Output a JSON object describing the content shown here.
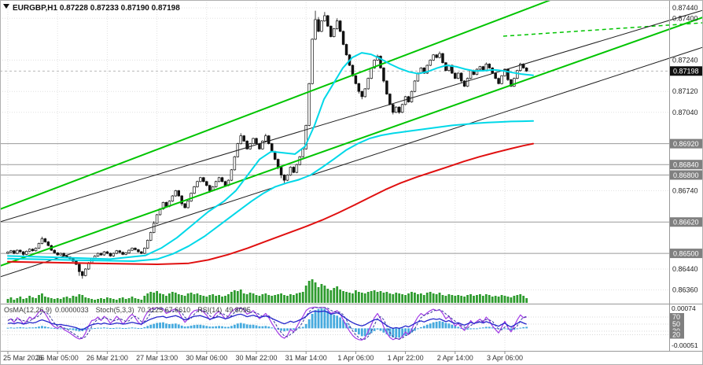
{
  "header": {
    "display": "EURGBP,H1  0.87228 0.87233 0.87190 0.87198"
  },
  "colors": {
    "green_line": "#00c400",
    "dark_line": "#1f1f1f",
    "ma_fast": "#00d8e8",
    "ma_slow": "#00d8e8",
    "ma_red": "#e01010",
    "volume": "#2e9b2e",
    "osma": "#46aade",
    "stoch": "#a23ae6",
    "stoch_signal": "#34349c",
    "rsi": "#2626cc",
    "badge": "#808080",
    "current_badge": "#111111"
  },
  "y_axis": {
    "labels": [
      {
        "text": "0.87440",
        "price": 87440
      },
      {
        "text": "0.87400",
        "price": 87400
      },
      {
        "text": "0.87240",
        "price": 87240
      },
      {
        "text": "0.87120",
        "price": 87120
      },
      {
        "text": "0.87040",
        "price": 87040
      },
      {
        "text": "0.86740",
        "price": 86740
      },
      {
        "text": "0.86440",
        "price": 86440
      },
      {
        "text": "0.86360",
        "price": 86360
      }
    ],
    "current": {
      "text": "0.87198",
      "price": 87198
    }
  },
  "x_axis": {
    "labels": [
      "25 Mar 2026",
      "26 Mar 05:00",
      "26 Mar 21:00",
      "27 Mar 13:00",
      "30 Mar 06:00",
      "30 Mar 22:00",
      "31 Mar 14:00",
      "1 Apr 06:00",
      "1 Apr 22:00",
      "2 Apr 14:00",
      "3 Apr 06:00"
    ]
  },
  "indicators": {
    "osma_label": "OsMA(12,26,9)",
    "osma_value": "0.0000033",
    "stoch_label": "Stoch(5,3,3)",
    "stoch_values": "70.3125 67.6610",
    "rsi_label": "RSI(14)",
    "rsi_value": "49.8095",
    "scale_top": "0.00074",
    "scale_bottom": "-0.00051",
    "levels": [
      {
        "text": "70",
        "value": 70
      },
      {
        "text": "50",
        "value": 50
      },
      {
        "text": "30",
        "value": 30
      },
      {
        "text": "20",
        "value": 20
      }
    ]
  },
  "chart_data": {
    "type": "candlestick",
    "symbol": "EURGBP",
    "timeframe": "H1",
    "title": "EURGBP,H1",
    "ohlc_current": {
      "open": 0.87228,
      "high": 0.87233,
      "low": 0.8719,
      "close": 0.87198
    },
    "ylim": [
      0.8636,
      0.8744
    ],
    "price_unit": 1e-05,
    "levels": [
      {
        "text": "0.86920",
        "price": 86920
      },
      {
        "text": "0.86840",
        "price": 86840
      },
      {
        "text": "0.86800",
        "price": 86800
      },
      {
        "text": "0.86620",
        "price": 86620
      },
      {
        "text": "0.86500",
        "price": 86500
      }
    ],
    "candles": {
      "first_open": 86500,
      "closes": [
        86505,
        86510,
        86500,
        86512,
        86506,
        86496,
        86508,
        86516,
        86510,
        86520,
        86538,
        86556,
        86544,
        86530,
        86512,
        86502,
        86494,
        86500,
        86490,
        86486,
        86480,
        86470,
        86458,
        86430,
        86415,
        86440,
        86464,
        86480,
        86490,
        86500,
        86494,
        86506,
        86500,
        86490,
        86500,
        86510,
        86504,
        86496,
        86502,
        86512,
        86520,
        86514,
        86506,
        86500,
        86520,
        86550,
        86580,
        86615,
        86648,
        86670,
        86695,
        86680,
        86700,
        86720,
        86740,
        86720,
        86690,
        86675,
        86700,
        86730,
        86755,
        86775,
        86790,
        86775,
        86760,
        86740,
        86755,
        86775,
        86790,
        86775,
        86760,
        86780,
        86820,
        86870,
        86920,
        86950,
        86930,
        86900,
        86920,
        86940,
        86920,
        86900,
        86930,
        86950,
        86920,
        86890,
        86860,
        86830,
        86800,
        86780,
        86800,
        86830,
        86810,
        86840,
        86870,
        86900,
        86990,
        87150,
        87320,
        87395,
        87350,
        87390,
        87410,
        87370,
        87330,
        87360,
        87390,
        87350,
        87300,
        87260,
        87220,
        87180,
        87150,
        87120,
        87100,
        87130,
        87170,
        87210,
        87240,
        87255,
        87210,
        87160,
        87110,
        87070,
        87040,
        87060,
        87040,
        87070,
        87100,
        87080,
        87120,
        87160,
        87190,
        87210,
        87190,
        87220,
        87240,
        87260,
        87250,
        87265,
        87230,
        87200,
        87220,
        87190,
        87170,
        87190,
        87160,
        87140,
        87170,
        87200,
        87185,
        87205,
        87215,
        87200,
        87225,
        87210,
        87190,
        87170,
        87150,
        87180,
        87205,
        87165,
        87140,
        87170,
        87200,
        87225,
        87210,
        87198
      ],
      "wick_up_default": 3,
      "wick_dn_default": 3,
      "wick_up": {
        "11": 8,
        "47": 8,
        "75": 10,
        "83": 8,
        "99": 34,
        "100": 10,
        "102": 14,
        "106": 10,
        "119": 6,
        "139": 8,
        "154": 6,
        "165": 5
      },
      "wick_dn": {
        "5": 6,
        "20": 8,
        "23": 16,
        "24": 12,
        "56": 8,
        "65": 8,
        "87": 8,
        "88": 12,
        "89": 10,
        "113": 8,
        "114": 10,
        "121": 6,
        "124": 8,
        "126": 6,
        "146": 6,
        "161": 5
      }
    },
    "volumes": [
      5,
      7,
      4,
      6,
      8,
      5,
      6,
      9,
      7,
      6,
      10,
      12,
      8,
      7,
      6,
      5,
      6,
      5,
      7,
      8,
      6,
      9,
      8,
      11,
      10,
      7,
      6,
      5,
      4,
      5,
      6,
      5,
      7,
      6,
      5,
      4,
      6,
      7,
      5,
      6,
      8,
      6,
      5,
      4,
      9,
      12,
      14,
      13,
      15,
      12,
      11,
      9,
      12,
      14,
      13,
      11,
      10,
      9,
      12,
      13,
      11,
      12,
      10,
      9,
      8,
      10,
      11,
      9,
      10,
      8,
      9,
      11,
      14,
      16,
      15,
      17,
      12,
      11,
      13,
      12,
      10,
      9,
      11,
      12,
      10,
      9,
      10,
      11,
      12,
      10,
      9,
      11,
      10,
      12,
      13,
      14,
      22,
      28,
      30,
      26,
      20,
      24,
      22,
      18,
      16,
      19,
      21,
      17,
      15,
      14,
      13,
      12,
      16,
      14,
      13,
      12,
      14,
      15,
      16,
      14,
      15,
      13,
      14,
      12,
      11,
      13,
      12,
      11,
      10,
      12,
      14,
      13,
      11,
      12,
      10,
      13,
      14,
      12,
      11,
      13,
      10,
      9,
      11,
      10,
      9,
      10,
      9,
      8,
      10,
      11,
      9,
      10,
      11,
      9,
      11,
      10,
      8,
      9,
      8,
      10,
      9,
      8,
      7,
      9,
      10,
      11,
      9,
      6
    ],
    "osma": [
      2,
      3,
      2,
      3,
      4,
      3,
      2,
      3,
      3,
      4,
      6,
      8,
      6,
      4,
      2,
      1,
      -1,
      -2,
      -2,
      -3,
      -4,
      -6,
      -8,
      -10,
      -9,
      -6,
      -3,
      -1,
      1,
      2,
      2,
      3,
      2,
      1,
      1,
      2,
      2,
      1,
      1,
      2,
      3,
      2,
      1,
      1,
      4,
      8,
      12,
      15,
      18,
      19,
      20,
      16,
      14,
      15,
      16,
      13,
      9,
      6,
      7,
      9,
      11,
      12,
      12,
      10,
      8,
      6,
      6,
      7,
      8,
      7,
      5,
      5,
      8,
      12,
      16,
      18,
      16,
      13,
      12,
      12,
      10,
      7,
      7,
      8,
      6,
      3,
      0,
      -4,
      -8,
      -10,
      -8,
      -5,
      -5,
      -2,
      2,
      5,
      14,
      30,
      48,
      60,
      64,
      66,
      65,
      58,
      50,
      45,
      42,
      36,
      28,
      18,
      8,
      -2,
      -12,
      -20,
      -26,
      -26,
      -22,
      -16,
      -9,
      -4,
      -8,
      -14,
      -20,
      -26,
      -30,
      -30,
      -31,
      -28,
      -24,
      -20,
      -14,
      -8,
      -2,
      4,
      8,
      12,
      16,
      20,
      22,
      24,
      22,
      18,
      16,
      12,
      8,
      5,
      1,
      -3,
      -4,
      -3,
      -1,
      0,
      2,
      3,
      5,
      5,
      3,
      1,
      -2,
      -3,
      -1,
      -4,
      -7,
      -5,
      -2,
      2,
      4,
      5
    ],
    "stoch": [
      60,
      65,
      55,
      68,
      62,
      50,
      58,
      70,
      64,
      72,
      85,
      90,
      80,
      65,
      50,
      42,
      38,
      45,
      35,
      30,
      25,
      18,
      12,
      8,
      10,
      25,
      45,
      60,
      62,
      70,
      60,
      72,
      65,
      52,
      60,
      72,
      64,
      50,
      58,
      70,
      78,
      68,
      55,
      48,
      70,
      85,
      92,
      95,
      96,
      94,
      92,
      80,
      84,
      90,
      93,
      85,
      68,
      55,
      65,
      80,
      88,
      90,
      91,
      84,
      75,
      62,
      68,
      80,
      86,
      76,
      64,
      72,
      85,
      92,
      95,
      96,
      90,
      78,
      82,
      88,
      78,
      65,
      72,
      80,
      68,
      52,
      38,
      25,
      15,
      10,
      18,
      35,
      28,
      42,
      58,
      72,
      88,
      95,
      97,
      98,
      96,
      97,
      97,
      90,
      80,
      84,
      88,
      78,
      62,
      45,
      30,
      18,
      10,
      6,
      5,
      12,
      28,
      48,
      68,
      80,
      65,
      42,
      25,
      12,
      6,
      10,
      7,
      15,
      28,
      20,
      35,
      55,
      70,
      80,
      74,
      82,
      88,
      92,
      88,
      91,
      80,
      65,
      72,
      58,
      45,
      52,
      40,
      32,
      45,
      60,
      50,
      58,
      64,
      55,
      70,
      60,
      45,
      35,
      25,
      42,
      58,
      40,
      28,
      45,
      62,
      76,
      68,
      70
    ],
    "rsi": [
      52,
      53,
      51,
      54,
      53,
      50,
      52,
      55,
      53,
      55,
      59,
      62,
      59,
      56,
      52,
      50,
      48,
      49,
      47,
      46,
      44,
      42,
      40,
      36,
      34,
      39,
      44,
      48,
      50,
      52,
      50,
      53,
      51,
      49,
      51,
      53,
      52,
      50,
      51,
      53,
      55,
      53,
      51,
      50,
      55,
      60,
      64,
      67,
      70,
      71,
      72,
      68,
      70,
      72,
      74,
      71,
      66,
      62,
      65,
      69,
      72,
      73,
      74,
      71,
      68,
      64,
      66,
      69,
      71,
      68,
      65,
      67,
      71,
      74,
      77,
      78,
      75,
      71,
      73,
      75,
      72,
      69,
      71,
      73,
      70,
      66,
      62,
      58,
      54,
      51,
      54,
      58,
      55,
      58,
      62,
      66,
      72,
      80,
      85,
      87,
      85,
      86,
      87,
      83,
      78,
      80,
      82,
      78,
      71,
      65,
      59,
      54,
      50,
      47,
      45,
      48,
      53,
      58,
      62,
      64,
      58,
      52,
      46,
      41,
      38,
      40,
      38,
      41,
      45,
      42,
      47,
      52,
      56,
      59,
      56,
      60,
      63,
      65,
      63,
      65,
      61,
      57,
      60,
      55,
      52,
      54,
      50,
      47,
      51,
      55,
      52,
      54,
      56,
      53,
      57,
      54,
      50,
      47,
      44,
      49,
      53,
      46,
      42,
      47,
      52,
      57,
      53,
      49.8
    ],
    "ma_fast_points": [
      [
        10,
        86490
      ],
      [
        80,
        86484
      ],
      [
        140,
        86478
      ],
      [
        185,
        86492
      ],
      [
        205,
        86520
      ],
      [
        225,
        86560
      ],
      [
        245,
        86610
      ],
      [
        265,
        86660
      ],
      [
        285,
        86700
      ],
      [
        300,
        86740
      ],
      [
        315,
        86800
      ],
      [
        330,
        86860
      ],
      [
        345,
        86890
      ],
      [
        360,
        86885
      ],
      [
        375,
        86880
      ],
      [
        388,
        86910
      ],
      [
        400,
        86990
      ],
      [
        412,
        87090
      ],
      [
        424,
        87150
      ],
      [
        436,
        87210
      ],
      [
        448,
        87250
      ],
      [
        460,
        87268
      ],
      [
        472,
        87262
      ],
      [
        484,
        87245
      ],
      [
        496,
        87225
      ],
      [
        508,
        87208
      ],
      [
        520,
        87195
      ],
      [
        532,
        87188
      ],
      [
        544,
        87196
      ],
      [
        556,
        87210
      ],
      [
        568,
        87220
      ],
      [
        580,
        87215
      ],
      [
        592,
        87205
      ],
      [
        604,
        87198
      ],
      [
        616,
        87200
      ],
      [
        628,
        87203
      ],
      [
        640,
        87199
      ],
      [
        652,
        87192
      ],
      [
        664,
        87186
      ],
      [
        678,
        87182
      ]
    ],
    "ma_slow_points": [
      [
        10,
        86480
      ],
      [
        100,
        86474
      ],
      [
        170,
        86470
      ],
      [
        200,
        86478
      ],
      [
        220,
        86498
      ],
      [
        240,
        86528
      ],
      [
        260,
        86565
      ],
      [
        280,
        86610
      ],
      [
        300,
        86655
      ],
      [
        320,
        86700
      ],
      [
        335,
        86730
      ],
      [
        350,
        86755
      ],
      [
        365,
        86770
      ],
      [
        380,
        86782
      ],
      [
        395,
        86800
      ],
      [
        410,
        86830
      ],
      [
        425,
        86862
      ],
      [
        440,
        86895
      ],
      [
        455,
        86920
      ],
      [
        470,
        86940
      ],
      [
        485,
        86952
      ],
      [
        500,
        86960
      ],
      [
        515,
        86966
      ],
      [
        530,
        86972
      ],
      [
        545,
        86978
      ],
      [
        560,
        86984
      ],
      [
        575,
        86990
      ],
      [
        590,
        86994
      ],
      [
        605,
        86998
      ],
      [
        620,
        87001
      ],
      [
        635,
        87003
      ],
      [
        650,
        87005
      ],
      [
        665,
        87006
      ],
      [
        678,
        87007
      ]
    ],
    "ma_red_points": [
      [
        10,
        86468
      ],
      [
        120,
        86462
      ],
      [
        200,
        86458
      ],
      [
        240,
        86462
      ],
      [
        265,
        86475
      ],
      [
        290,
        86495
      ],
      [
        315,
        86520
      ],
      [
        340,
        86548
      ],
      [
        365,
        86576
      ],
      [
        390,
        86604
      ],
      [
        410,
        86628
      ],
      [
        430,
        86655
      ],
      [
        450,
        86684
      ],
      [
        470,
        86714
      ],
      [
        490,
        86744
      ],
      [
        510,
        86770
      ],
      [
        530,
        86792
      ],
      [
        550,
        86812
      ],
      [
        570,
        86832
      ],
      [
        590,
        86852
      ],
      [
        610,
        86870
      ],
      [
        630,
        86886
      ],
      [
        650,
        86901
      ],
      [
        665,
        86912
      ],
      [
        678,
        86920
      ]
    ],
    "lines": [
      {
        "name": "channel-upper",
        "color": "green",
        "width": 2,
        "dash": "",
        "points": [
          [
            0,
            266
          ],
          [
            700,
            0
          ]
        ]
      },
      {
        "name": "channel-lower",
        "color": "green",
        "width": 2,
        "dash": "",
        "points": [
          [
            0,
            338
          ],
          [
            894,
            22
          ]
        ]
      },
      {
        "name": "channel-projection",
        "color": "green",
        "width": 1.5,
        "dash": "5 4",
        "points": [
          [
            640,
            46
          ],
          [
            894,
            29
          ]
        ]
      },
      {
        "name": "trendline-1",
        "color": "dark",
        "width": 1,
        "dash": "",
        "points": [
          [
            0,
            282
          ],
          [
            894,
            13
          ]
        ]
      },
      {
        "name": "trendline-2",
        "color": "dark",
        "width": 1,
        "dash": "",
        "points": [
          [
            0,
            352
          ],
          [
            894,
            60
          ]
        ]
      }
    ]
  }
}
